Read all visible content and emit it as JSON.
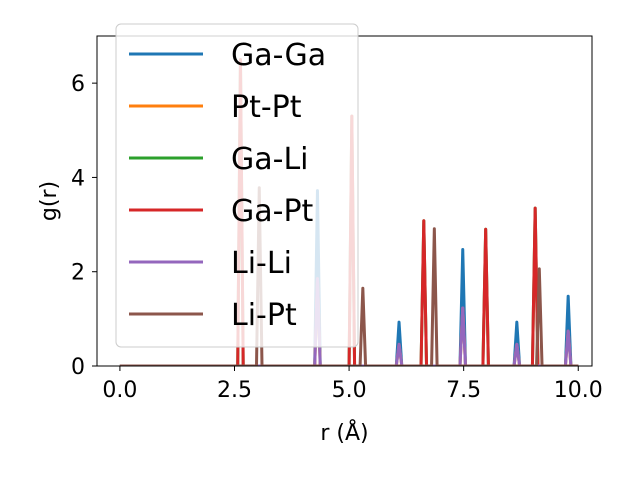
{
  "chart_data": {
    "type": "line",
    "xlabel": "r (Å)",
    "ylabel": "g(r)",
    "xlim": [
      -0.5,
      10.3
    ],
    "ylim": [
      0,
      7.0
    ],
    "xticks": [
      0.0,
      2.5,
      5.0,
      7.5,
      10.0
    ],
    "xtick_labels": [
      "0.0",
      "2.5",
      "5.0",
      "7.5",
      "10.0"
    ],
    "yticks": [
      0,
      2,
      4,
      6
    ],
    "ytick_labels": [
      "0",
      "2",
      "4",
      "6"
    ],
    "legend_position": "top-left",
    "grid": false,
    "peak_half_width": 0.06,
    "series": [
      {
        "name": "Ga-Ga",
        "color": "#1f77b4",
        "peaks": [
          [
            4.31,
            3.72
          ],
          [
            6.09,
            0.93
          ],
          [
            7.48,
            2.47
          ],
          [
            8.66,
            0.93
          ],
          [
            9.78,
            1.48
          ]
        ]
      },
      {
        "name": "Pt-Pt",
        "color": "#ff7f0e",
        "peaks": [
          [
            4.31,
            1.85
          ],
          [
            6.09,
            0.46
          ],
          [
            7.48,
            1.23
          ],
          [
            8.66,
            0.46
          ],
          [
            9.78,
            0.74
          ]
        ]
      },
      {
        "name": "Ga-Li",
        "color": "#2ca02c",
        "peaks": [
          [
            2.63,
            6.5
          ],
          [
            5.06,
            5.3
          ],
          [
            6.63,
            3.08
          ],
          [
            7.98,
            2.9
          ],
          [
            9.06,
            3.35
          ]
        ]
      },
      {
        "name": "Ga-Pt",
        "color": "#d62728",
        "peaks": [
          [
            2.63,
            6.5
          ],
          [
            5.06,
            5.3
          ],
          [
            6.63,
            3.08
          ],
          [
            7.98,
            2.9
          ],
          [
            9.06,
            3.35
          ]
        ]
      },
      {
        "name": "Li-Li",
        "color": "#9467bd",
        "peaks": [
          [
            4.31,
            1.85
          ],
          [
            6.09,
            0.46
          ],
          [
            7.48,
            1.23
          ],
          [
            8.66,
            0.46
          ],
          [
            9.78,
            0.74
          ]
        ]
      },
      {
        "name": "Li-Pt",
        "color": "#8c564b",
        "peaks": [
          [
            3.04,
            3.78
          ],
          [
            5.3,
            1.65
          ],
          [
            6.86,
            2.91
          ],
          [
            9.15,
            2.06
          ]
        ]
      }
    ]
  }
}
